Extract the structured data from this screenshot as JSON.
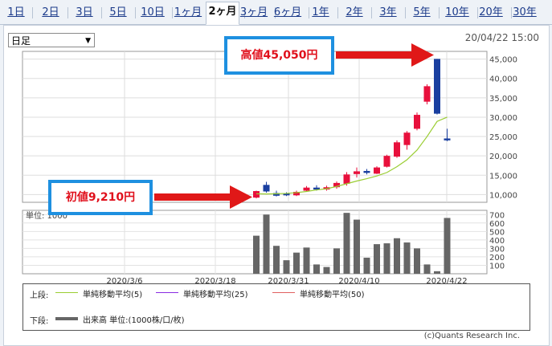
{
  "period_tabs": [
    "1日",
    "2日",
    "3日",
    "5日",
    "10日",
    "1ヶ月",
    "2ヶ月",
    "3ヶ月",
    "6ヶ月",
    "1年",
    "2年",
    "3年",
    "5年",
    "10年",
    "20年",
    "30年"
  ],
  "active_tab": "2ヶ月",
  "interval_select": {
    "value": "日足"
  },
  "datetime": "20/04/22 15:00",
  "price_axis": [
    "45,000",
    "40,000",
    "35,000",
    "30,000",
    "25,000",
    "20,000",
    "15,000",
    "10,000"
  ],
  "volume_axis": [
    "700",
    "600",
    "500",
    "400",
    "300",
    "200",
    "100"
  ],
  "volume_unit_label": "単位: 1000",
  "date_labels": [
    "2020/3/6",
    "2020/3/18",
    "2020/3/31",
    "2020/4/10",
    "2020/4/22"
  ],
  "callouts": {
    "high": "高値45,050円",
    "initial": "初値9,210円"
  },
  "legend": {
    "upper_label": "上段:",
    "lower_label": "下段:",
    "items": [
      {
        "label": "単純移動平均(5)",
        "color": "#9acd32"
      },
      {
        "label": "単純移動平均(25)",
        "color": "#8a2be2"
      },
      {
        "label": "単純移動平均(50)",
        "color": "#e06060"
      }
    ],
    "volume": {
      "label": "出来高 単位:(1000株/口/枚)",
      "color": "#666666"
    }
  },
  "credit": "(c)Quants Research Inc.",
  "colors": {
    "up": "#e8103c",
    "down": "#1a3fa0",
    "ma5": "#9acd32",
    "volume": "#666666",
    "arrow": "#e01818",
    "callout_border": "#1e90e0"
  },
  "chart_data": {
    "type": "candlestick",
    "price_ylim": [
      8000,
      47000
    ],
    "volume_ylim": [
      0,
      750
    ],
    "candles": [
      {
        "open": 9210,
        "high": 11000,
        "low": 9000,
        "close": 10900,
        "volume": 450
      },
      {
        "open": 12500,
        "high": 13300,
        "low": 10500,
        "close": 10800,
        "volume": 700
      },
      {
        "open": 10400,
        "high": 11000,
        "low": 9500,
        "close": 9700,
        "volume": 330
      },
      {
        "open": 10300,
        "high": 10600,
        "low": 9600,
        "close": 9800,
        "volume": 160
      },
      {
        "open": 9800,
        "high": 11000,
        "low": 9600,
        "close": 10700,
        "volume": 250
      },
      {
        "open": 11000,
        "high": 12200,
        "low": 10700,
        "close": 11800,
        "volume": 310
      },
      {
        "open": 11800,
        "high": 12400,
        "low": 11000,
        "close": 11300,
        "volume": 110
      },
      {
        "open": 11300,
        "high": 12300,
        "low": 11000,
        "close": 11900,
        "volume": 80
      },
      {
        "open": 11900,
        "high": 13400,
        "low": 11500,
        "close": 13000,
        "volume": 300
      },
      {
        "open": 12800,
        "high": 15800,
        "low": 12300,
        "close": 15200,
        "volume": 720
      },
      {
        "open": 15300,
        "high": 17000,
        "low": 14400,
        "close": 16000,
        "volume": 640
      },
      {
        "open": 16100,
        "high": 16600,
        "low": 15200,
        "close": 15600,
        "volume": 190
      },
      {
        "open": 15400,
        "high": 17300,
        "low": 15300,
        "close": 17000,
        "volume": 350
      },
      {
        "open": 17200,
        "high": 20300,
        "low": 17000,
        "close": 20000,
        "volume": 360
      },
      {
        "open": 19800,
        "high": 24000,
        "low": 19500,
        "close": 23500,
        "volume": 420
      },
      {
        "open": 22800,
        "high": 26400,
        "low": 21600,
        "close": 26000,
        "volume": 370
      },
      {
        "open": 27000,
        "high": 31200,
        "low": 26600,
        "close": 30600,
        "volume": 300
      },
      {
        "open": 34000,
        "high": 38500,
        "low": 33300,
        "close": 38000,
        "volume": 110
      },
      {
        "open": 45050,
        "high": 45050,
        "low": 30700,
        "close": 30900,
        "volume": 30
      },
      {
        "open": 24500,
        "high": 27000,
        "low": 23800,
        "close": 24000,
        "volume": 660
      }
    ],
    "ma5": [
      10200,
      10150,
      10200,
      10300,
      10500,
      10800,
      11200,
      11500,
      12100,
      12800,
      13500,
      14100,
      14800,
      15700,
      17200,
      19000,
      21500,
      25000,
      28900,
      30000
    ]
  }
}
